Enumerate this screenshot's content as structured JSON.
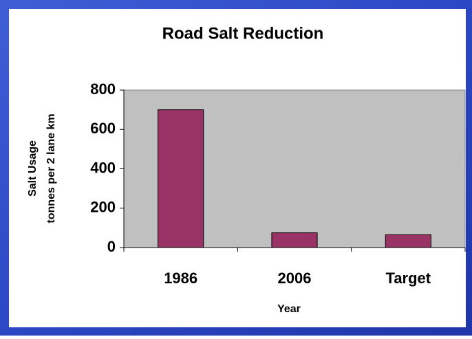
{
  "chart_data": {
    "type": "bar",
    "title": "Road Salt Reduction",
    "xlabel": "Year",
    "ylabel": [
      "Salt Usage",
      "tonnes per 2 lane km"
    ],
    "categories": [
      "1986",
      "2006",
      "Target"
    ],
    "values": [
      700,
      75,
      65
    ],
    "color": "#993366",
    "ylim": [
      0,
      800
    ],
    "yticks": [
      0,
      200,
      400,
      600,
      800
    ],
    "grid": false
  }
}
